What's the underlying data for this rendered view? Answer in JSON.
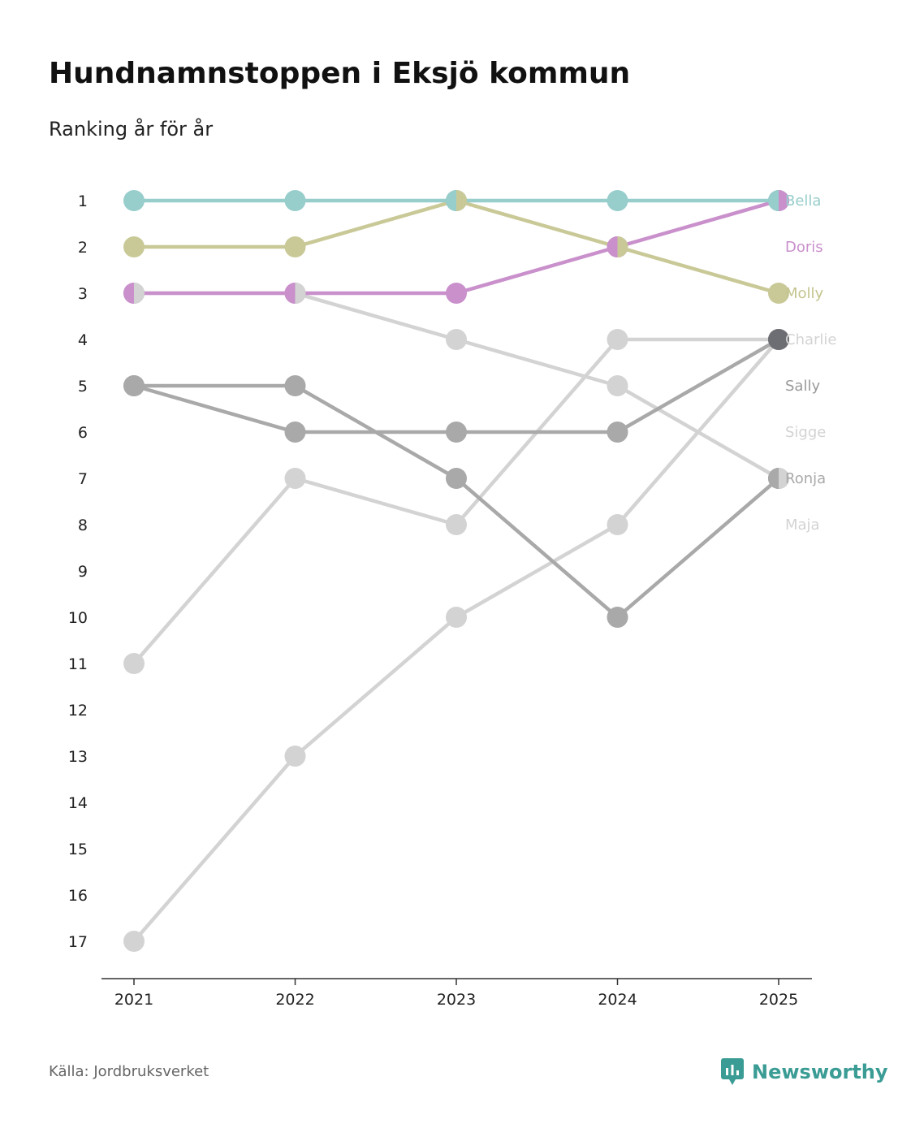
{
  "title": "Hundnamnstoppen i Eksjö kommun",
  "subtitle": "Ranking år för år",
  "source": "Källa: Jordbruksverket",
  "brand": {
    "name": "Newsworthy",
    "icon": "newsworthy-logo-icon",
    "color": "#3a9c94"
  },
  "chart_data": {
    "type": "line",
    "x": [
      "2021",
      "2022",
      "2023",
      "2024",
      "2025"
    ],
    "y_ticks": [
      1,
      2,
      3,
      4,
      5,
      6,
      7,
      8,
      9,
      10,
      11,
      12,
      13,
      14,
      15,
      16,
      17
    ],
    "ylim": [
      1,
      17
    ],
    "y_inverted": true,
    "series": [
      {
        "name": "Maja",
        "values": [
          17,
          13,
          10,
          8,
          4
        ],
        "color": "#d3d3d3",
        "label_color": "#d3d3d3"
      },
      {
        "name": "Sigge",
        "values": [
          11,
          7,
          8,
          4,
          4
        ],
        "color": "#d3d3d3",
        "label_color": "#d3d3d3"
      },
      {
        "name": "Charlie",
        "values": [
          3,
          3,
          4,
          5,
          7
        ],
        "color": "#d3d3d3",
        "label_color": "#d3d3d3"
      },
      {
        "name": "Ronja",
        "values": [
          5,
          5,
          7,
          10,
          7
        ],
        "color": "#a9a9aa",
        "label_color": "#a9a9aa"
      },
      {
        "name": "Sally",
        "values": [
          5,
          6,
          6,
          6,
          4
        ],
        "color": "#a9a9aa",
        "label_color": "#9a9a9a"
      },
      {
        "name": "Molly",
        "values": [
          2,
          2,
          1,
          2,
          3
        ],
        "color": "#c9c998",
        "label_color": "#c4c48f"
      },
      {
        "name": "Doris",
        "values": [
          3,
          3,
          3,
          2,
          1
        ],
        "color": "#c990cc",
        "label_color": "#c990cc"
      },
      {
        "name": "Bella",
        "values": [
          1,
          1,
          1,
          1,
          1
        ],
        "color": "#97cdcb",
        "label_color": "#97cdcb"
      }
    ],
    "end_labels": [
      {
        "name": "Bella",
        "rank": 1,
        "color": "#97cdcb"
      },
      {
        "name": "Doris",
        "rank": 2,
        "color": "#c990cc"
      },
      {
        "name": "Molly",
        "rank": 3,
        "color": "#c4c48f"
      },
      {
        "name": "Charlie",
        "rank": 4,
        "color": "#d3d3d3"
      },
      {
        "name": "Sally",
        "rank": 5,
        "color": "#9a9a9a"
      },
      {
        "name": "Sigge",
        "rank": 6,
        "color": "#d3d3d3"
      },
      {
        "name": "Ronja",
        "rank": 7,
        "color": "#a9a9aa"
      },
      {
        "name": "Maja",
        "rank": 8,
        "color": "#d3d3d3"
      }
    ],
    "shared_markers": [
      {
        "x": "2021",
        "rank": 3,
        "left": "#c990cc",
        "right": "#d3d3d3"
      },
      {
        "x": "2022",
        "rank": 3,
        "left": "#c990cc",
        "right": "#d3d3d3"
      },
      {
        "x": "2023",
        "rank": 1,
        "left": "#97cdcb",
        "right": "#c9c998"
      },
      {
        "x": "2024",
        "rank": 2,
        "left": "#c990cc",
        "right": "#c9c998"
      },
      {
        "x": "2025",
        "rank": 1,
        "left": "#97cdcb",
        "right": "#c990cc"
      },
      {
        "x": "2025",
        "rank": 4,
        "left": "#6d6d74",
        "right": "#6d6d74"
      },
      {
        "x": "2025",
        "rank": 7,
        "left": "#a9a9aa",
        "right": "#d3d3d3"
      }
    ]
  }
}
